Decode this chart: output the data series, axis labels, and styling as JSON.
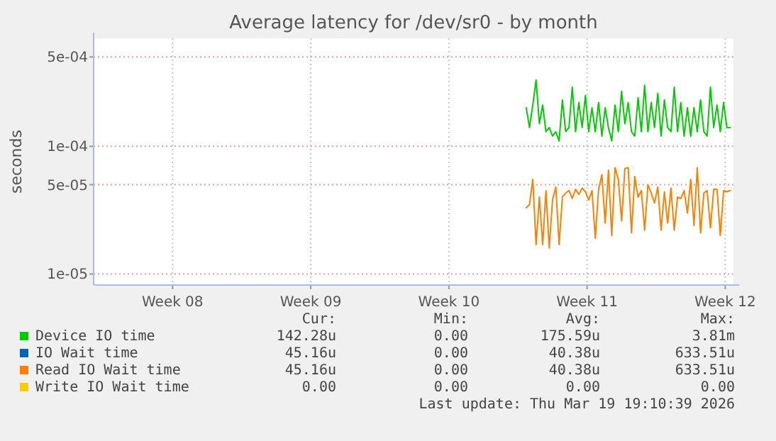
{
  "chart_data": {
    "type": "line",
    "title": "Average latency for /dev/sr0 - by month",
    "ylabel": "seconds",
    "log": "y",
    "grid": true,
    "legend": "bottom",
    "xlim": [
      "2026-02-15T12:00",
      "2026-03-19T22:00"
    ],
    "xticks": [
      {
        "value": "2026-02-19T12:00",
        "label": "Week 08"
      },
      {
        "value": "2026-02-26T12:00",
        "label": "Week 09"
      },
      {
        "value": "2026-03-05T12:00",
        "label": "Week 10"
      },
      {
        "value": "2026-03-12T12:00",
        "label": "Week 11"
      },
      {
        "value": "2026-03-19T12:00",
        "label": "Week 12"
      }
    ],
    "ylim": [
      8.2e-06,
      0.0007
    ],
    "yticks": [
      {
        "value": 1e-05,
        "label": "1e-05"
      },
      {
        "value": 5e-05,
        "label": "5e-05"
      },
      {
        "value": 0.0001,
        "label": "1e-04"
      },
      {
        "value": 0.0005,
        "label": "5e-04"
      }
    ],
    "x": [
      "2026-03-09T10:00",
      "2026-03-09T14:00",
      "2026-03-09T18:00",
      "2026-03-09T22:00",
      "2026-03-10T02:00",
      "2026-03-10T06:00",
      "2026-03-10T10:00",
      "2026-03-10T14:00",
      "2026-03-10T18:00",
      "2026-03-10T22:00",
      "2026-03-11T02:00",
      "2026-03-11T06:00",
      "2026-03-11T10:00",
      "2026-03-11T14:00",
      "2026-03-11T18:00",
      "2026-03-11T22:00",
      "2026-03-12T02:00",
      "2026-03-12T06:00",
      "2026-03-12T10:00",
      "2026-03-12T14:00",
      "2026-03-12T18:00",
      "2026-03-12T22:00",
      "2026-03-13T02:00",
      "2026-03-13T06:00",
      "2026-03-13T10:00",
      "2026-03-13T14:00",
      "2026-03-13T18:00",
      "2026-03-13T22:00",
      "2026-03-14T02:00",
      "2026-03-14T06:00",
      "2026-03-14T10:00",
      "2026-03-14T14:00",
      "2026-03-14T18:00",
      "2026-03-14T22:00",
      "2026-03-15T02:00",
      "2026-03-15T06:00",
      "2026-03-15T10:00",
      "2026-03-15T14:00",
      "2026-03-15T18:00",
      "2026-03-15T22:00",
      "2026-03-16T02:00",
      "2026-03-16T06:00",
      "2026-03-16T10:00",
      "2026-03-16T14:00",
      "2026-03-16T18:00",
      "2026-03-16T22:00",
      "2026-03-17T02:00",
      "2026-03-17T06:00",
      "2026-03-17T10:00",
      "2026-03-17T14:00",
      "2026-03-17T18:00",
      "2026-03-17T22:00",
      "2026-03-18T02:00",
      "2026-03-18T06:00",
      "2026-03-18T10:00",
      "2026-03-18T14:00",
      "2026-03-18T18:00",
      "2026-03-18T22:00",
      "2026-03-19T02:00",
      "2026-03-19T06:00",
      "2026-03-19T10:00",
      "2026-03-19T14:00",
      "2026-03-19T18:00"
    ],
    "series": [
      {
        "name": "Device IO time",
        "color": "#00cc00",
        "values": [
          0.0002,
          0.00014,
          0.00021,
          0.00033,
          0.00015,
          0.00021,
          0.00013,
          0.00014,
          0.00012,
          0.00013,
          0.00011,
          0.00023,
          0.00013,
          0.00014,
          0.00029,
          0.00013,
          0.00022,
          0.00014,
          0.00025,
          0.00013,
          0.0002,
          0.00013,
          0.00022,
          0.00012,
          0.0002,
          0.00014,
          0.00011,
          0.00021,
          0.00013,
          0.00027,
          0.00015,
          0.00022,
          0.00013,
          0.00012,
          0.00024,
          0.00013,
          0.0003,
          0.00013,
          0.00022,
          0.00014,
          0.00026,
          0.00012,
          0.00023,
          0.00014,
          0.00013,
          0.00029,
          0.00013,
          0.00022,
          0.00012,
          0.0002,
          0.00012,
          0.0002,
          0.00013,
          0.00023,
          0.00013,
          0.00012,
          0.00029,
          0.00014,
          0.00021,
          0.00013,
          0.00022,
          0.00014,
          0.00014
        ]
      },
      {
        "name": "IO Wait time",
        "color": "#0066b3",
        "values": [
          null,
          null,
          null,
          null,
          null,
          null,
          null,
          null,
          null,
          null,
          null,
          null,
          null,
          null,
          null,
          null,
          null,
          null,
          null,
          null,
          null,
          null,
          null,
          null,
          null,
          null,
          null,
          null,
          null,
          null,
          null,
          null,
          null,
          null,
          null,
          null,
          null,
          null,
          null,
          null,
          null,
          null,
          null,
          null,
          null,
          null,
          null,
          null,
          null,
          null,
          null,
          null,
          null,
          null,
          null,
          null,
          null,
          null,
          null,
          null,
          null,
          null,
          null
        ]
      },
      {
        "name": "Read IO Wait time",
        "color": "#ff8000",
        "values": [
          3.3e-05,
          3.5e-05,
          5.5e-05,
          1.7e-05,
          4e-05,
          1.7e-05,
          4.5e-05,
          1.6e-05,
          3.8e-05,
          4.8e-05,
          1.7e-05,
          4e-05,
          4.3e-05,
          4.5e-05,
          3.9e-05,
          4.6e-05,
          4.2e-05,
          4.7e-05,
          4.4e-05,
          3.8e-05,
          4.5e-05,
          1.9e-05,
          4.6e-05,
          6e-05,
          2.5e-05,
          6.5e-05,
          2e-05,
          6.8e-05,
          5.5e-05,
          2.6e-05,
          6.7e-05,
          6.8e-05,
          2.1e-05,
          5.8e-05,
          4e-05,
          4.5e-05,
          2.2e-05,
          5e-05,
          4.3e-05,
          3.6e-05,
          4.8e-05,
          2.2e-05,
          4.4e-05,
          2.5e-05,
          4.7e-05,
          2.2e-05,
          4e-05,
          3.9e-05,
          4.5e-05,
          3e-05,
          5.5e-05,
          2.4e-05,
          6.8e-05,
          2.1e-05,
          4.3e-05,
          4.5e-05,
          2.3e-05,
          4.6e-05,
          4.6e-05,
          2e-05,
          4.5e-05,
          4.4e-05,
          4.5e-05
        ]
      },
      {
        "name": "Write IO Wait time",
        "color": "#ffcc00",
        "values": [
          null,
          null,
          null,
          null,
          null,
          null,
          null,
          null,
          null,
          null,
          null,
          null,
          null,
          null,
          null,
          null,
          null,
          null,
          null,
          null,
          null,
          null,
          null,
          null,
          null,
          null,
          null,
          null,
          null,
          null,
          null,
          null,
          null,
          null,
          null,
          null,
          null,
          null,
          null,
          null,
          null,
          null,
          null,
          null,
          null,
          null,
          null,
          null,
          null,
          null,
          null,
          null,
          null,
          null,
          null,
          null,
          null,
          null,
          null,
          null,
          null,
          null,
          null
        ]
      }
    ],
    "annotations": [
      "Cur:",
      "Min:",
      "Avg:",
      "Max:",
      "142.28u",
      "0.00",
      "175.59u",
      "3.81m",
      "45.16u",
      "0.00",
      "40.38u",
      "633.51u",
      "45.16u",
      "0.00",
      "40.38u",
      "633.51u",
      "0.00",
      "0.00",
      "0.00",
      "0.00",
      "Last update: Thu Mar 19 19:10:39 2026"
    ]
  }
}
